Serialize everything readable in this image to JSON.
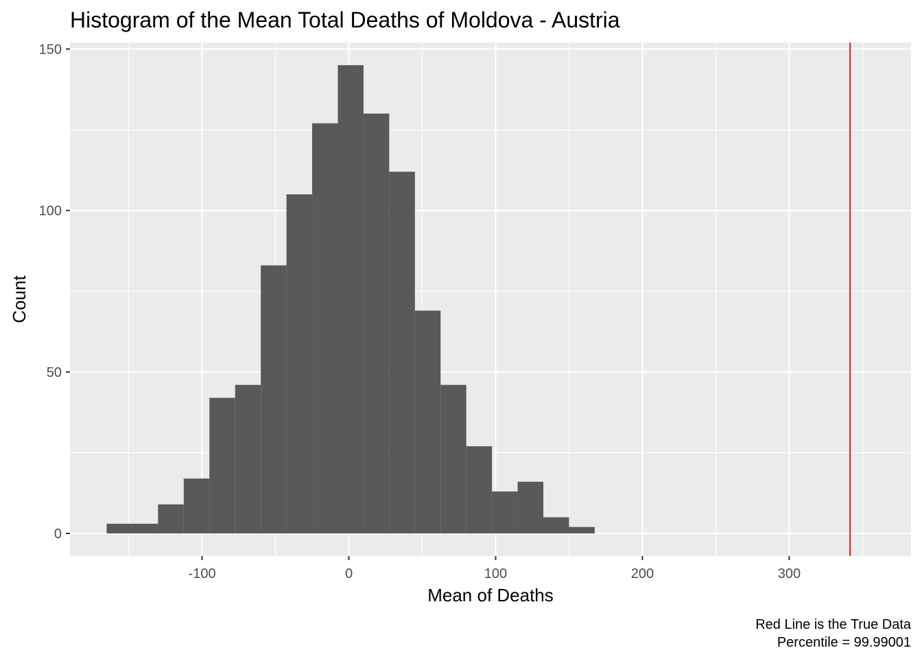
{
  "chart_data": {
    "type": "bar",
    "title": "Histogram of the Mean Total Deaths of Moldova - Austria",
    "xlabel": "Mean of Deaths",
    "ylabel": "Count",
    "xlim": [
      -190,
      383
    ],
    "ylim": [
      -7,
      152
    ],
    "x_ticks": [
      -100,
      0,
      100,
      200,
      300
    ],
    "x_tick_labels": [
      "-100",
      "0",
      "100",
      "200",
      "300"
    ],
    "y_ticks": [
      0,
      50,
      100,
      150
    ],
    "y_tick_labels": [
      "0",
      "50",
      "100",
      "150"
    ],
    "bin_width": 17.5,
    "bins": [
      {
        "x0": -165.0,
        "x1": -147.5,
        "count": 3
      },
      {
        "x0": -147.5,
        "x1": -130.0,
        "count": 3
      },
      {
        "x0": -130.0,
        "x1": -112.5,
        "count": 9
      },
      {
        "x0": -112.5,
        "x1": -95.0,
        "count": 17
      },
      {
        "x0": -95.0,
        "x1": -77.5,
        "count": 42
      },
      {
        "x0": -77.5,
        "x1": -60.0,
        "count": 46
      },
      {
        "x0": -60.0,
        "x1": -42.5,
        "count": 83
      },
      {
        "x0": -42.5,
        "x1": -25.0,
        "count": 105
      },
      {
        "x0": -25.0,
        "x1": -7.5,
        "count": 127
      },
      {
        "x0": -7.5,
        "x1": 10.0,
        "count": 145
      },
      {
        "x0": 10.0,
        "x1": 27.5,
        "count": 130
      },
      {
        "x0": 27.5,
        "x1": 45.0,
        "count": 112
      },
      {
        "x0": 45.0,
        "x1": 62.5,
        "count": 69
      },
      {
        "x0": 62.5,
        "x1": 80.0,
        "count": 46
      },
      {
        "x0": 80.0,
        "x1": 97.5,
        "count": 27
      },
      {
        "x0": 97.5,
        "x1": 115.0,
        "count": 13
      },
      {
        "x0": 115.0,
        "x1": 132.5,
        "count": 16
      },
      {
        "x0": 132.5,
        "x1": 150.0,
        "count": 5
      },
      {
        "x0": 150.0,
        "x1": 167.5,
        "count": 2
      }
    ],
    "reference_line": {
      "x": 341.5,
      "color": "#e31a1c"
    },
    "bar_color": "#595959",
    "panel_background": "#ebebeb",
    "grid": true,
    "caption_lines": [
      "Red Line is the True Data",
      "Percentile = 99.99001"
    ]
  }
}
